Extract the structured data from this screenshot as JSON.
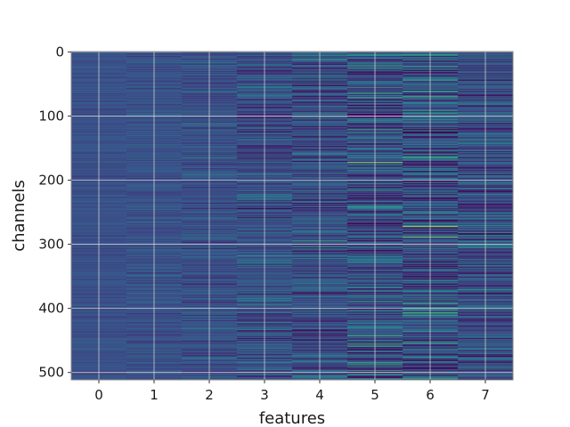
{
  "chart_data": {
    "type": "heatmap",
    "title": "",
    "xlabel": "features",
    "ylabel": "channels",
    "x_categories": [
      "0",
      "1",
      "2",
      "3",
      "4",
      "5",
      "6",
      "7"
    ],
    "y_range": [
      0,
      511
    ],
    "y_ticks": [
      0,
      100,
      200,
      300,
      400,
      500
    ],
    "y_inverted": true,
    "rows": 512,
    "grid": true,
    "colormap": "viridis",
    "colormap_stops": [
      "#440154",
      "#3b528b",
      "#21918c",
      "#5ec962",
      "#fde725"
    ],
    "background_color": "#3b4f8a",
    "column_spread": [
      0.06,
      0.08,
      0.12,
      0.18,
      0.22,
      0.28,
      0.3,
      0.24
    ],
    "highlight_rows": [
      {
        "feature": 4,
        "channel": 12,
        "value": 0.55
      },
      {
        "feature": 5,
        "channel": 172,
        "value": 0.75
      },
      {
        "feature": 5,
        "channel": 456,
        "value": 0.72
      },
      {
        "feature": 6,
        "channel": 4,
        "value": 0.62
      },
      {
        "feature": 6,
        "channel": 92,
        "value": 0.55
      },
      {
        "feature": 6,
        "channel": 272,
        "value": 0.95
      },
      {
        "feature": 6,
        "channel": 436,
        "value": 0.55
      },
      {
        "feature": 7,
        "channel": 282,
        "value": 0.58
      },
      {
        "feature": 7,
        "channel": 374,
        "value": 0.5
      }
    ]
  }
}
